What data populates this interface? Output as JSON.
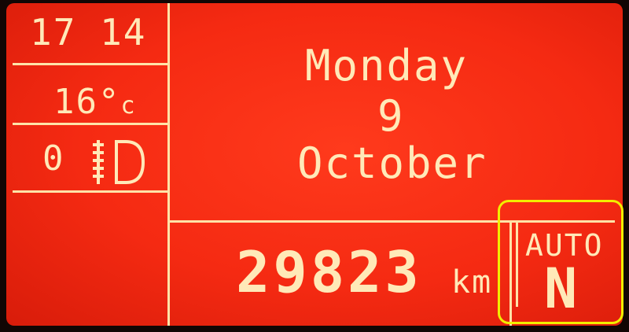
{
  "status": {
    "time": "17 14",
    "temperature_value": "16°",
    "temperature_unit": "c",
    "headlamp_level": "0",
    "headlamp_icon": "headlamp-leveling-icon"
  },
  "date": {
    "weekday": "Monday",
    "day": "9",
    "month": "October"
  },
  "odometer": {
    "value": "29823",
    "unit": "km"
  },
  "gearbox": {
    "mode": "AUTO",
    "gear": "N"
  },
  "colors": {
    "display_background": "#f52a12",
    "segment_text": "#ffe9b8",
    "highlight_box": "#f2ee00"
  }
}
